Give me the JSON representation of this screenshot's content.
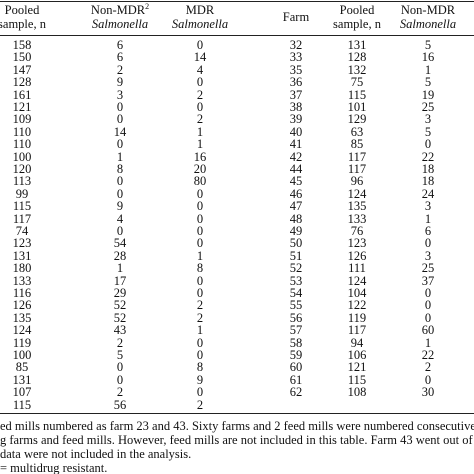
{
  "table": {
    "headers": [
      {
        "line1": "Pooled",
        "line2": "sample, n"
      },
      {
        "line1": "Non-MDR",
        "sup": "2",
        "line2": "Salmonella"
      },
      {
        "line1": "MDR",
        "line2": "Salmonella"
      },
      {
        "line1": "Farm"
      },
      {
        "line1": "Pooled",
        "line2": "sample, n"
      },
      {
        "line1": "Non-MDR",
        "line2": "Salmonella"
      }
    ],
    "rows": [
      [
        "158",
        "6",
        "0",
        "32",
        "131",
        "5"
      ],
      [
        "150",
        "6",
        "14",
        "33",
        "128",
        "16"
      ],
      [
        "147",
        "2",
        "4",
        "35",
        "132",
        "1"
      ],
      [
        "128",
        "9",
        "0",
        "36",
        "75",
        "5"
      ],
      [
        "161",
        "3",
        "2",
        "37",
        "115",
        "19"
      ],
      [
        "121",
        "0",
        "0",
        "38",
        "101",
        "25"
      ],
      [
        "109",
        "0",
        "2",
        "39",
        "129",
        "3"
      ],
      [
        "110",
        "14",
        "1",
        "40",
        "63",
        "5"
      ],
      [
        "110",
        "0",
        "1",
        "41",
        "85",
        "0"
      ],
      [
        "100",
        "1",
        "16",
        "42",
        "117",
        "22"
      ],
      [
        "120",
        "8",
        "20",
        "44",
        "117",
        "18"
      ],
      [
        "113",
        "0",
        "80",
        "45",
        "96",
        "18"
      ],
      [
        "99",
        "0",
        "0",
        "46",
        "124",
        "24"
      ],
      [
        "115",
        "9",
        "0",
        "47",
        "135",
        "3"
      ],
      [
        "117",
        "4",
        "0",
        "48",
        "133",
        "1"
      ],
      [
        "74",
        "0",
        "0",
        "49",
        "76",
        "6"
      ],
      [
        "123",
        "54",
        "0",
        "50",
        "123",
        "0"
      ],
      [
        "131",
        "28",
        "1",
        "51",
        "126",
        "3"
      ],
      [
        "180",
        "1",
        "8",
        "52",
        "111",
        "25"
      ],
      [
        "133",
        "17",
        "0",
        "53",
        "124",
        "37"
      ],
      [
        "116",
        "29",
        "0",
        "54",
        "104",
        "0"
      ],
      [
        "126",
        "52",
        "2",
        "55",
        "122",
        "0"
      ],
      [
        "135",
        "52",
        "2",
        "56",
        "119",
        "0"
      ],
      [
        "124",
        "43",
        "1",
        "57",
        "117",
        "60"
      ],
      [
        "119",
        "2",
        "0",
        "58",
        "94",
        "1"
      ],
      [
        "100",
        "5",
        "0",
        "59",
        "106",
        "22"
      ],
      [
        "85",
        "0",
        "8",
        "60",
        "121",
        "2"
      ],
      [
        "131",
        "0",
        "9",
        "61",
        "115",
        "0"
      ],
      [
        "107",
        "2",
        "0",
        "62",
        "108",
        "30"
      ],
      [
        "115",
        "56",
        "2"
      ]
    ],
    "footnotes": [
      "ed mills numbered as farm 23 and 43. Sixty farms and 2 feed mills were numbered consecutivel",
      "g farms and feed mills. However, feed mills are not included in this table. Farm 43 went out of b",
      "data were not included in the analysis.",
      "= multidrug resistant."
    ]
  }
}
